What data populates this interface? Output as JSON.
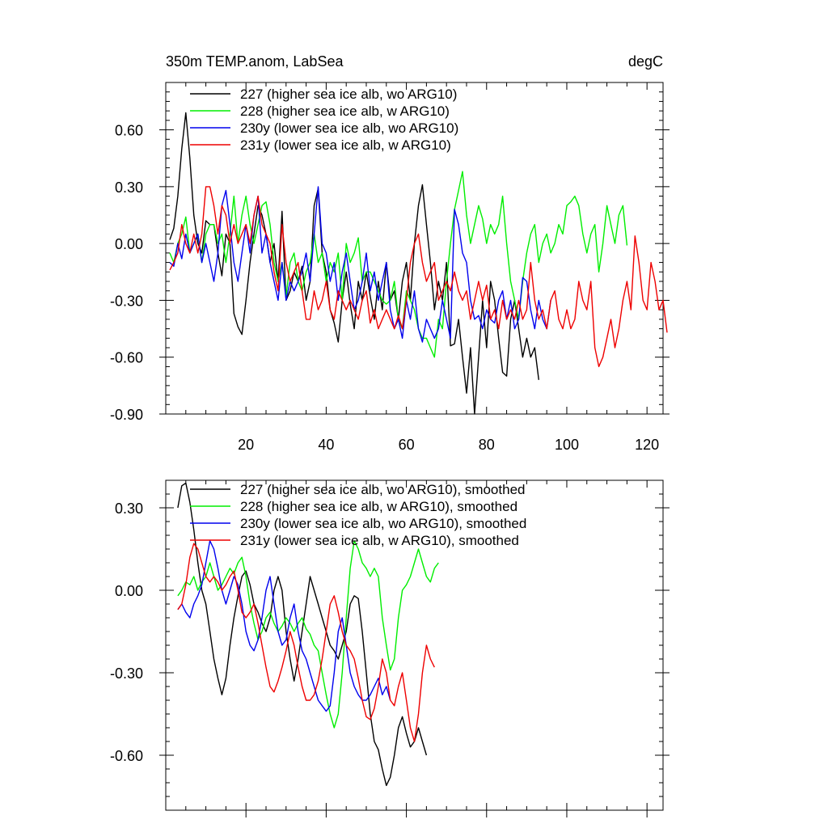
{
  "chart_data": [
    {
      "type": "line",
      "title": "350m TEMP.anom, LabSea",
      "units": "degC",
      "xlabel": "",
      "ylabel": "",
      "xlim": [
        0,
        124
      ],
      "ylim": [
        -0.9,
        0.85
      ],
      "xticks": [
        20,
        40,
        60,
        80,
        100,
        120
      ],
      "xtick_labels": [
        "20",
        "40",
        "60",
        "80",
        "100",
        "120"
      ],
      "yticks": [
        0.6,
        0.3,
        0.0,
        -0.3,
        -0.6,
        -0.9
      ],
      "ytick_labels": [
        "0.60",
        "0.30",
        "0.00",
        "-0.30",
        "-0.60",
        "-0.90"
      ],
      "legend_position": "top-left",
      "series": [
        {
          "name": "227 (higher sea ice alb, wo ARG10)",
          "color": "#000000",
          "x_start": 1,
          "values": [
            0.02,
            0.08,
            0.25,
            0.5,
            0.69,
            0.45,
            0.15,
            0.0,
            -0.05,
            0.12,
            0.1,
            0.1,
            -0.05,
            -0.17,
            0.05,
            0.0,
            -0.37,
            -0.44,
            -0.48,
            -0.3,
            -0.1,
            0.05,
            0.2,
            0.15,
            0.05,
            -0.1,
            0.0,
            -0.2,
            0.17,
            -0.3,
            -0.25,
            -0.15,
            -0.2,
            -0.12,
            -0.3,
            -0.2,
            0.2,
            0.29,
            -0.05,
            -0.15,
            -0.35,
            -0.42,
            -0.52,
            -0.3,
            -0.15,
            -0.32,
            -0.45,
            -0.2,
            -0.3,
            -0.15,
            -0.28,
            -0.4,
            -0.2,
            -0.35,
            -0.1,
            -0.3,
            -0.25,
            -0.4,
            -0.2,
            -0.1,
            -0.3,
            0.0,
            0.2,
            0.31,
            0.1,
            -0.1,
            -0.35,
            -0.2,
            -0.3,
            -0.1,
            -0.54,
            -0.53,
            -0.4,
            -0.6,
            -0.79,
            -0.55,
            -0.9,
            -0.6,
            -0.3,
            -0.55,
            -0.2,
            -0.3,
            -0.5,
            -0.68,
            -0.7,
            -0.4,
            -0.3,
            -0.45,
            -0.6,
            -0.5,
            -0.6,
            -0.55,
            -0.72
          ]
        },
        {
          "name": "228 (higher sea ice alb, w ARG10)",
          "color": "#00ee00",
          "x_start": 1,
          "values": [
            -0.05,
            -0.1,
            0.0,
            0.05,
            0.14,
            -0.05,
            0.0,
            0.05,
            -0.1,
            0.05,
            0.1,
            0.1,
            0.0,
            0.05,
            -0.1,
            0.05,
            0.25,
            0.0,
            0.15,
            0.25,
            0.1,
            0.0,
            0.1,
            0.2,
            0.22,
            0.1,
            -0.1,
            -0.2,
            -0.1,
            -0.28,
            -0.1,
            -0.05,
            -0.2,
            -0.25,
            -0.15,
            -0.1,
            0.05,
            -0.1,
            -0.05,
            -0.2,
            -0.1,
            -0.15,
            -0.05,
            -0.3,
            0.0,
            -0.1,
            -0.05,
            0.03,
            -0.2,
            -0.15,
            -0.15,
            -0.2,
            -0.25,
            -0.3,
            -0.32,
            -0.3,
            -0.2,
            -0.4,
            -0.45,
            -0.25,
            -0.3,
            -0.35,
            -0.45,
            -0.5,
            -0.5,
            -0.55,
            -0.6,
            -0.4,
            -0.45,
            -0.2,
            0.0,
            0.18,
            0.28,
            0.38,
            0.15,
            0.0,
            0.1,
            0.2,
            0.13,
            0.0,
            0.1,
            0.05,
            0.1,
            0.25,
            0.0,
            -0.2,
            -0.3,
            -0.4,
            -0.2,
            -0.05,
            0.05,
            0.1,
            -0.1,
            0.0,
            0.05,
            -0.05,
            0.0,
            0.1,
            0.05,
            0.2,
            0.22,
            0.25,
            0.2,
            0.05,
            -0.05,
            0.05,
            0.1,
            -0.15,
            0.0,
            0.2,
            0.1,
            0.0,
            0.15,
            0.2,
            -0.01
          ]
        },
        {
          "name": "230y (lower sea ice alb, wo ARG10)",
          "color": "#0000ee",
          "x_start": 1,
          "values": [
            -0.1,
            -0.12,
            0.0,
            -0.08,
            0.05,
            -0.05,
            0.0,
            0.05,
            -0.1,
            0.0,
            -0.1,
            -0.2,
            -0.05,
            0.2,
            0.28,
            0.1,
            -0.1,
            -0.2,
            -0.05,
            0.1,
            -0.05,
            0.15,
            0.25,
            -0.05,
            0.05,
            -0.1,
            -0.2,
            -0.3,
            -0.1,
            -0.3,
            -0.2,
            -0.25,
            -0.2,
            -0.15,
            -0.05,
            -0.2,
            0.05,
            0.3,
            0.0,
            -0.05,
            -0.2,
            -0.1,
            -0.3,
            -0.15,
            -0.05,
            -0.2,
            -0.35,
            -0.3,
            -0.2,
            -0.05,
            -0.25,
            -0.15,
            -0.3,
            -0.2,
            -0.1,
            -0.35,
            -0.45,
            -0.4,
            -0.5,
            -0.3,
            -0.4,
            -0.25,
            -0.45,
            -0.52,
            -0.4,
            -0.45,
            -0.5,
            -0.45,
            -0.3,
            -0.4,
            -0.5,
            0.18,
            0.1,
            -0.05,
            -0.1,
            -0.3,
            -0.4,
            -0.38,
            -0.45,
            -0.35,
            -0.4,
            -0.42,
            -0.3,
            -0.25,
            -0.4,
            -0.3,
            -0.45,
            -0.4,
            -0.18,
            -0.2,
            -0.35,
            -0.45,
            -0.3,
            -0.4,
            -0.45,
            -0.3
          ]
        },
        {
          "name": "231y (lower sea ice alb, w ARG10)",
          "color": "#ee0000",
          "x_start": 1,
          "values": [
            -0.14,
            -0.1,
            -0.05,
            0.1,
            0.0,
            -0.05,
            0.05,
            -0.05,
            0.05,
            0.3,
            0.3,
            0.2,
            0.05,
            0.2,
            0.15,
            0.0,
            0.1,
            0.0,
            0.05,
            0.1,
            0.0,
            0.15,
            0.25,
            0.1,
            0.05,
            0.0,
            -0.15,
            -0.25,
            0.1,
            -0.1,
            -0.2,
            -0.15,
            -0.1,
            -0.25,
            -0.4,
            -0.4,
            -0.25,
            -0.35,
            -0.3,
            -0.2,
            -0.35,
            -0.4,
            -0.25,
            -0.3,
            -0.35,
            -0.3,
            -0.35,
            -0.4,
            -0.3,
            -0.25,
            -0.42,
            -0.35,
            -0.45,
            -0.4,
            -0.35,
            -0.4,
            -0.45,
            -0.38,
            -0.45,
            -0.3,
            -0.1,
            0.0,
            0.05,
            -0.1,
            -0.2,
            -0.15,
            -0.1,
            -0.3,
            -0.25,
            -0.2,
            -0.25,
            -0.15,
            -0.25,
            -0.3,
            -0.25,
            -0.4,
            -0.3,
            -0.2,
            -0.3,
            -0.22,
            -0.4,
            -0.35,
            -0.45,
            -0.3,
            -0.4,
            -0.35,
            -0.4,
            -0.3,
            -0.4,
            -0.35,
            -0.1,
            -0.3,
            -0.4,
            -0.35,
            -0.45,
            -0.3,
            -0.25,
            -0.4,
            -0.45,
            -0.35,
            -0.45,
            -0.4,
            -0.2,
            -0.3,
            -0.35,
            -0.2,
            -0.55,
            -0.65,
            -0.6,
            -0.5,
            -0.4,
            -0.55,
            -0.45,
            -0.3,
            -0.2,
            -0.35,
            0.04,
            -0.1,
            -0.3,
            -0.35,
            -0.1,
            -0.2,
            -0.35,
            -0.3,
            -0.47
          ]
        }
      ]
    },
    {
      "type": "line",
      "title": "",
      "units": "",
      "xlabel": "",
      "ylabel": "",
      "xlim": [
        0,
        124
      ],
      "ylim": [
        -0.8,
        0.4
      ],
      "xticks": [
        20,
        40,
        60,
        80,
        100,
        120
      ],
      "xtick_labels": [],
      "yticks": [
        0.3,
        0.0,
        -0.3,
        -0.6
      ],
      "ytick_labels": [
        "0.30",
        "0.00",
        "-0.30",
        "-0.60"
      ],
      "legend_position": "top-left",
      "series": [
        {
          "name": "227 (higher sea ice alb, wo ARG10), smoothed",
          "color": "#000000",
          "x_start": 3,
          "values": [
            0.3,
            0.38,
            0.39,
            0.32,
            0.22,
            0.1,
            0.0,
            -0.05,
            -0.15,
            -0.25,
            -0.32,
            -0.38,
            -0.32,
            -0.2,
            -0.1,
            -0.02,
            0.05,
            0.07,
            0.02,
            -0.05,
            -0.08,
            -0.12,
            -0.15,
            -0.1,
            0.0,
            0.05,
            0.0,
            -0.15,
            -0.25,
            -0.33,
            -0.25,
            -0.15,
            -0.05,
            0.05,
            0.0,
            -0.05,
            -0.1,
            -0.15,
            -0.2,
            -0.22,
            -0.25,
            -0.2,
            -0.15,
            -0.05,
            -0.02,
            -0.03,
            -0.15,
            -0.3,
            -0.45,
            -0.55,
            -0.58,
            -0.65,
            -0.71,
            -0.68,
            -0.6,
            -0.5,
            -0.46,
            -0.52,
            -0.57,
            -0.55,
            -0.5,
            -0.55,
            -0.6
          ]
        },
        {
          "name": "228 (higher sea ice alb, w ARG10), smoothed",
          "color": "#00ee00",
          "x_start": 3,
          "values": [
            -0.02,
            0.0,
            0.03,
            0.02,
            0.05,
            0.0,
            0.03,
            0.05,
            0.1,
            0.05,
            0.0,
            0.02,
            0.05,
            0.08,
            0.06,
            0.1,
            0.12,
            0.05,
            -0.05,
            -0.12,
            -0.18,
            -0.15,
            -0.1,
            -0.08,
            -0.12,
            -0.15,
            -0.13,
            -0.1,
            -0.12,
            -0.15,
            -0.12,
            -0.1,
            -0.14,
            -0.16,
            -0.2,
            -0.22,
            -0.3,
            -0.38,
            -0.45,
            -0.5,
            -0.45,
            -0.3,
            -0.1,
            0.08,
            0.18,
            0.15,
            0.1,
            0.08,
            0.05,
            0.08,
            0.05,
            -0.1,
            -0.2,
            -0.29,
            -0.25,
            -0.1,
            0.0,
            0.02,
            0.05,
            0.1,
            0.15,
            0.1,
            0.05,
            0.03,
            0.08,
            0.1
          ]
        },
        {
          "name": "230y (lower sea ice alb, wo ARG10), smoothed",
          "color": "#0000ee",
          "x_start": 3,
          "values": [
            -0.07,
            -0.05,
            -0.08,
            -0.1,
            -0.05,
            -0.02,
            0.02,
            0.1,
            0.18,
            0.15,
            0.08,
            0.0,
            -0.05,
            0.0,
            0.05,
            0.02,
            -0.05,
            -0.15,
            -0.2,
            -0.22,
            -0.18,
            -0.1,
            0.0,
            0.05,
            -0.05,
            -0.15,
            -0.2,
            -0.18,
            -0.1,
            -0.05,
            -0.15,
            -0.22,
            -0.25,
            -0.3,
            -0.35,
            -0.4,
            -0.42,
            -0.44,
            -0.42,
            -0.3,
            -0.15,
            -0.1,
            -0.2,
            -0.3,
            -0.35,
            -0.38,
            -0.4,
            -0.4,
            -0.38,
            -0.35,
            -0.32,
            -0.38,
            -0.35,
            -0.4
          ]
        },
        {
          "name": "231y (lower sea ice alb, w ARG10), smoothed",
          "color": "#ee0000",
          "x_start": 3,
          "values": [
            -0.07,
            -0.05,
            0.02,
            0.12,
            0.17,
            0.15,
            0.1,
            0.05,
            0.03,
            0.05,
            0.03,
            0.0,
            0.02,
            0.05,
            0.07,
            0.0,
            -0.08,
            -0.1,
            -0.08,
            -0.05,
            -0.12,
            -0.2,
            -0.28,
            -0.35,
            -0.37,
            -0.33,
            -0.28,
            -0.22,
            -0.15,
            -0.2,
            -0.28,
            -0.35,
            -0.4,
            -0.4,
            -0.38,
            -0.33,
            -0.25,
            -0.15,
            -0.05,
            -0.02,
            -0.08,
            -0.15,
            -0.2,
            -0.22,
            -0.25,
            -0.32,
            -0.4,
            -0.46,
            -0.47,
            -0.43,
            -0.35,
            -0.25,
            -0.3,
            -0.4,
            -0.42,
            -0.35,
            -0.3,
            -0.4,
            -0.5,
            -0.55,
            -0.45,
            -0.3,
            -0.2,
            -0.25,
            -0.28
          ]
        }
      ]
    }
  ]
}
